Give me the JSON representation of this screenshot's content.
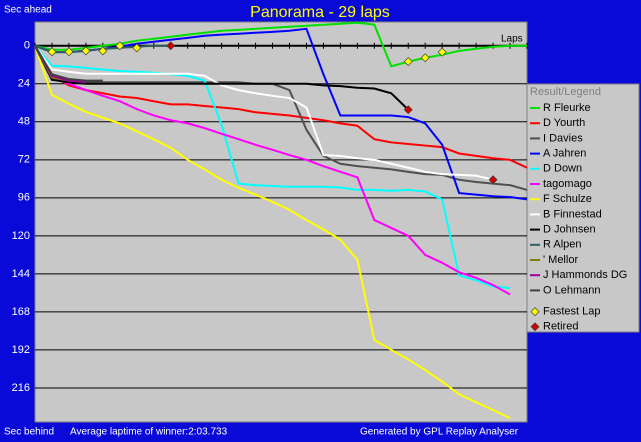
{
  "chart_data": {
    "type": "line",
    "title": "Panorama - 29 laps",
    "y_label_top": "Sec ahead",
    "y_label_bottom": "Sec behind",
    "x_label": "Laps",
    "footer_left": "Average laptime of winner:2:03.733",
    "footer_right": "Generated by GPL Replay Analyser",
    "legend_title": "Result/Legend",
    "legend": "right",
    "grid": true,
    "y_inverted": true,
    "xlim": [
      0,
      29
    ],
    "ylim": [
      -15,
      237.5
    ],
    "yticks": [
      0,
      24,
      48,
      72,
      96,
      120,
      144,
      168,
      192,
      216
    ],
    "xticks": [
      0,
      1,
      2,
      3,
      4,
      5,
      6,
      7,
      8,
      9,
      10,
      11,
      12,
      13,
      14,
      15,
      16,
      17,
      18,
      19,
      20,
      21,
      22,
      23,
      24,
      25,
      26,
      27,
      28,
      29
    ],
    "x": [
      0,
      1,
      2,
      3,
      4,
      5,
      6,
      7,
      8,
      9,
      10,
      11,
      12,
      13,
      14,
      15,
      16,
      17,
      18,
      19,
      20,
      21,
      22,
      23,
      24,
      25,
      26,
      27,
      28,
      29
    ],
    "series": [
      {
        "name": "R Fleurke",
        "color": "#00e000",
        "values": [
          0,
          2.5,
          2.5,
          1.3,
          0,
          -1.3,
          -3.2,
          -4.4,
          -5.7,
          -7,
          -8.2,
          -9.5,
          -10,
          -10.7,
          -11.4,
          -12,
          -12.6,
          -13.3,
          -13.9,
          -14.5,
          -13.3,
          13,
          10,
          7.6,
          5.7,
          3.2,
          1.9,
          0.6,
          0,
          0
        ]
      },
      {
        "name": "D Yourth",
        "color": "#ff0000",
        "values": [
          0,
          19,
          25,
          28,
          30,
          32,
          33,
          35,
          37,
          37,
          38,
          39,
          40,
          42,
          43,
          44,
          45.5,
          47,
          49,
          50.5,
          59,
          61,
          62,
          63,
          64,
          68,
          69.5,
          71,
          72,
          77
        ]
      },
      {
        "name": "I Davies",
        "color": "#505050",
        "values": [
          0,
          20,
          23,
          23,
          23,
          23,
          23,
          23,
          23,
          23,
          23,
          23,
          23,
          24,
          24,
          28,
          53,
          69.5,
          74.5,
          76,
          77,
          78,
          79.6,
          81,
          81.5,
          84.6,
          86,
          87,
          88,
          91
        ]
      },
      {
        "name": "A Jahren",
        "color": "#0000ff",
        "values": [
          0,
          4,
          4,
          3.2,
          1.9,
          0.6,
          -1.3,
          -2.5,
          -3.8,
          -5,
          -6.3,
          -7,
          -7.6,
          -8.2,
          -8.8,
          -9.5,
          -10.7,
          18,
          44,
          44,
          44,
          44,
          45,
          49,
          62.5,
          93,
          94,
          95,
          95.5,
          97
        ]
      },
      {
        "name": "D Down",
        "color": "#00ffff",
        "values": [
          0,
          12.6,
          13,
          14,
          15,
          16,
          16.4,
          17,
          18,
          19,
          22,
          50,
          87,
          88,
          88.5,
          89,
          89,
          89,
          89.5,
          91,
          91,
          91.5,
          91,
          92,
          97,
          145,
          148,
          152,
          153,
          null
        ]
      },
      {
        "name": "tagomago",
        "color": "#ff00ff",
        "values": [
          0,
          20,
          24,
          28,
          31.6,
          35,
          40,
          44,
          47,
          49,
          52,
          55.6,
          59,
          62.5,
          65.7,
          69,
          72,
          76,
          79.6,
          83,
          110,
          115,
          120,
          132,
          137,
          143,
          146.5,
          151,
          157,
          null
        ]
      },
      {
        "name": "F Schulze",
        "color": "#ffff00",
        "values": [
          0,
          31,
          36.6,
          41.7,
          45.5,
          49,
          54,
          59,
          64.4,
          72,
          78,
          84.6,
          89.7,
          94,
          98.5,
          103.6,
          110,
          116,
          122.5,
          135,
          185.7,
          192,
          198,
          204.7,
          212,
          220,
          225,
          230,
          235,
          null
        ]
      },
      {
        "name": "B Finnestad",
        "color": "#ffffff",
        "values": [
          0,
          15,
          16.4,
          17.7,
          17.7,
          17.7,
          17.7,
          17.7,
          17.7,
          17.7,
          19,
          25,
          28,
          30,
          31.6,
          33,
          39,
          69,
          69.5,
          71,
          72,
          74.5,
          77,
          79.6,
          81,
          81.5,
          82,
          84.6,
          null,
          null
        ]
      },
      {
        "name": "D Johnsen",
        "color": "#000000",
        "values": [
          0,
          21.5,
          23,
          24,
          24,
          24,
          24,
          24,
          24,
          24,
          24,
          24,
          24,
          24,
          24,
          24,
          24,
          25,
          25.5,
          26.5,
          27,
          30,
          40.4,
          null,
          null,
          null,
          null,
          null,
          null,
          null
        ]
      },
      {
        "name": "R Alpen",
        "color": "#306060",
        "values": [
          0,
          4,
          4,
          3,
          2,
          1.3,
          0.6,
          0,
          0,
          null,
          null,
          null,
          null,
          null,
          null,
          null,
          null,
          null,
          null,
          null,
          null,
          null,
          null,
          null,
          null,
          null,
          null,
          null,
          null,
          null
        ]
      },
      {
        "name": "' Mellor",
        "color": "#808000",
        "values": [
          0,
          20,
          22,
          null,
          null,
          null,
          null,
          null,
          null,
          null,
          null,
          null,
          null,
          null,
          null,
          null,
          null,
          null,
          null,
          null,
          null,
          null,
          null,
          null,
          null,
          null,
          null,
          null,
          null,
          null
        ]
      },
      {
        "name": "J Hammonds DG",
        "color": "#a000a0",
        "values": [
          0,
          19,
          22,
          23,
          null,
          null,
          null,
          null,
          null,
          null,
          null,
          null,
          null,
          null,
          null,
          null,
          null,
          null,
          null,
          null,
          null,
          null,
          null,
          null,
          null,
          null,
          null,
          null,
          null,
          null
        ]
      },
      {
        "name": "O Lehmann",
        "color": "#404040",
        "values": [
          0,
          18,
          21,
          22,
          22,
          null,
          null,
          null,
          null,
          null,
          null,
          null,
          null,
          null,
          null,
          null,
          null,
          null,
          null,
          null,
          null,
          null,
          null,
          null,
          null,
          null,
          null,
          null,
          null,
          null
        ]
      }
    ],
    "markers": [
      {
        "name": "Fastest Lap",
        "color": "#ffff00",
        "x": [
          1,
          2,
          3,
          4,
          5,
          6,
          22,
          23,
          24
        ],
        "values": [
          3.8,
          3.8,
          3.2,
          3.2,
          0,
          1.3,
          10,
          7.6,
          4
        ]
      },
      {
        "name": "Retired",
        "color": "#d00000",
        "x": [
          8,
          22,
          27
        ],
        "values": [
          0,
          40.4,
          84.6
        ]
      }
    ]
  }
}
